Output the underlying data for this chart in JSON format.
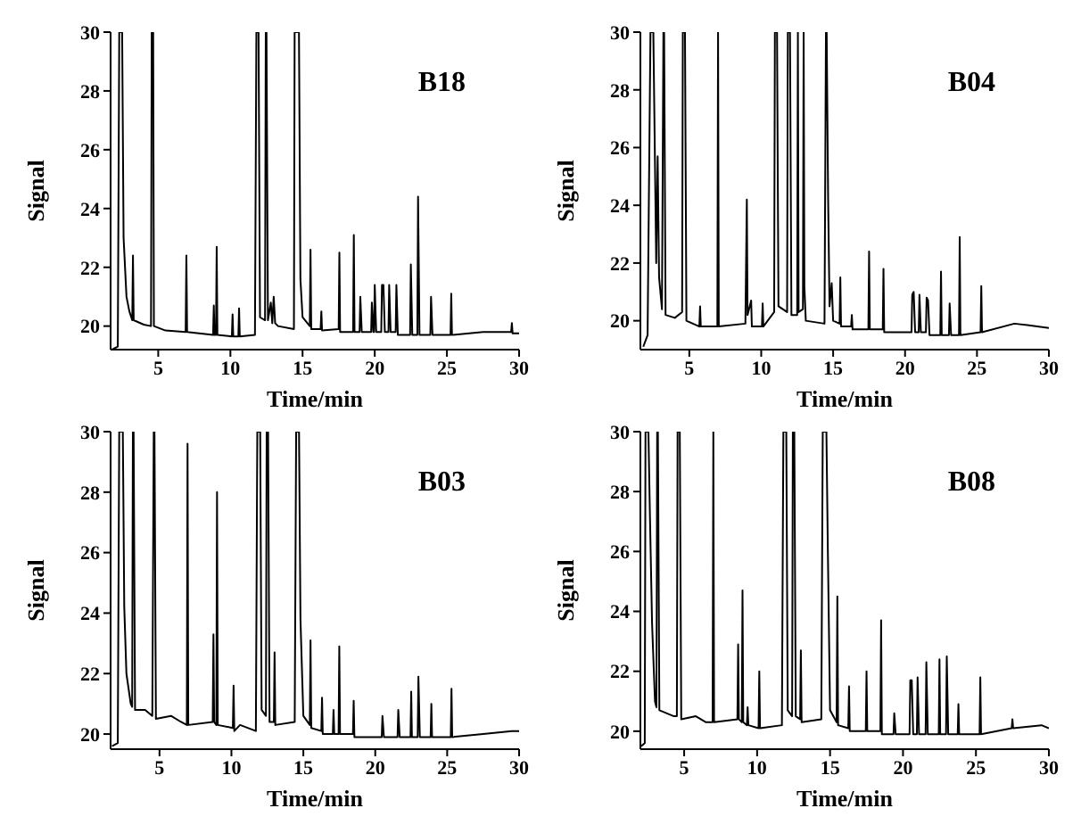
{
  "chart_data": [
    {
      "type": "line",
      "xlabel": "Time/min",
      "ylabel": "Signal",
      "annotations": [
        "B18"
      ],
      "xlim": [
        1.7,
        30
      ],
      "ylim": [
        19.2,
        30
      ],
      "xticks": [
        5,
        10,
        15,
        20,
        25,
        30
      ],
      "yticks": [
        20,
        22,
        24,
        26,
        28,
        30
      ],
      "x": [
        1.8,
        2.2,
        2.3,
        2.5,
        2.6,
        2.8,
        3.0,
        3.2,
        3.25,
        3.3,
        4.0,
        4.5,
        4.55,
        4.65,
        4.7,
        5.5,
        6.9,
        6.95,
        7.0,
        8.8,
        8.85,
        8.9,
        9.0,
        9.05,
        9.1,
        10.1,
        10.15,
        10.2,
        10.55,
        10.6,
        10.65,
        11.7,
        11.8,
        11.95,
        12.05,
        12.4,
        12.45,
        12.5,
        12.6,
        12.8,
        12.9,
        13.0,
        13.1,
        13.3,
        14.4,
        14.45,
        14.75,
        14.85,
        15.0,
        15.5,
        15.55,
        15.6,
        16.25,
        16.3,
        16.35,
        17.5,
        17.55,
        17.6,
        18.5,
        18.55,
        18.6,
        18.95,
        19.0,
        19.1,
        19.75,
        19.8,
        19.9,
        19.95,
        20.0,
        20.1,
        20.45,
        20.5,
        20.6,
        20.7,
        20.95,
        21.0,
        21.1,
        21.45,
        21.5,
        21.6,
        22.45,
        22.5,
        22.6,
        22.95,
        23.0,
        23.1,
        23.85,
        23.9,
        24.0,
        25.25,
        25.3,
        25.35,
        27.5,
        29.45,
        29.5,
        29.55,
        30
      ],
      "series": [
        {
          "color": "#000000",
          "values": [
            19.2,
            19.3,
            30,
            30,
            23,
            21,
            20.5,
            20.2,
            22.4,
            20.2,
            20.05,
            20.0,
            30,
            30,
            20.0,
            19.85,
            19.8,
            22.4,
            19.8,
            19.7,
            20.7,
            19.7,
            19.7,
            22.7,
            19.7,
            19.65,
            20.4,
            19.65,
            19.65,
            20.6,
            19.65,
            19.7,
            30,
            30,
            20.3,
            20.2,
            30,
            30,
            20.2,
            20.8,
            20.1,
            21.0,
            20.1,
            20.0,
            19.9,
            30,
            30,
            21.6,
            20.3,
            20.0,
            22.6,
            19.9,
            19.9,
            20.5,
            19.85,
            19.9,
            22.5,
            19.8,
            19.8,
            23.1,
            19.8,
            19.8,
            21.0,
            19.8,
            19.8,
            20.8,
            19.8,
            19.8,
            21.4,
            19.8,
            19.8,
            21.4,
            21.4,
            19.8,
            19.8,
            21.4,
            19.8,
            19.8,
            21.4,
            19.7,
            19.7,
            22.1,
            19.7,
            19.7,
            24.4,
            19.7,
            19.7,
            21.0,
            19.7,
            19.7,
            21.1,
            19.7,
            19.8,
            19.8,
            20.1,
            19.75,
            19.75
          ]
        }
      ]
    },
    {
      "type": "line",
      "xlabel": "Time/min",
      "ylabel": "Signal",
      "annotations": [
        "B04"
      ],
      "xlim": [
        1.6,
        30
      ],
      "ylim": [
        19.0,
        30
      ],
      "xticks": [
        5,
        10,
        15,
        20,
        25,
        30
      ],
      "yticks": [
        20,
        22,
        24,
        26,
        28,
        30
      ],
      "x": [
        1.8,
        2.1,
        2.3,
        2.5,
        2.6,
        2.7,
        2.8,
        2.9,
        3.1,
        3.2,
        3.25,
        3.35,
        4.0,
        4.5,
        4.55,
        4.7,
        4.8,
        5.7,
        5.75,
        5.8,
        6.95,
        7.0,
        7.05,
        8.9,
        9.0,
        9.05,
        9.3,
        9.35,
        10.05,
        10.1,
        10.15,
        10.9,
        10.95,
        11.1,
        11.2,
        11.8,
        11.85,
        12.0,
        12.1,
        12.5,
        12.55,
        12.6,
        12.9,
        12.95,
        13.0,
        13.1,
        14.4,
        14.5,
        14.55,
        14.65,
        14.75,
        14.9,
        15.0,
        15.45,
        15.5,
        15.55,
        16.25,
        16.3,
        16.35,
        17.45,
        17.5,
        17.55,
        18.45,
        18.5,
        18.55,
        20.45,
        20.5,
        20.6,
        20.7,
        20.95,
        21.0,
        21.1,
        21.45,
        21.5,
        21.6,
        21.7,
        22.45,
        22.5,
        22.55,
        23.05,
        23.1,
        23.2,
        23.75,
        23.8,
        23.85,
        25.25,
        25.3,
        25.35,
        27.6,
        28.5,
        30
      ],
      "series": [
        {
          "color": "#000000",
          "values": [
            19.1,
            19.5,
            30,
            30,
            26,
            22,
            25.7,
            21.5,
            20.4,
            30,
            30,
            20.2,
            20.1,
            20.3,
            30,
            30,
            20.0,
            19.8,
            20.5,
            19.8,
            19.8,
            30,
            19.8,
            19.9,
            24.2,
            20.2,
            20.7,
            19.8,
            19.8,
            20.6,
            19.8,
            20.3,
            30,
            30,
            20.5,
            20.3,
            30,
            30,
            20.2,
            20.2,
            30,
            20.3,
            20.4,
            30,
            21.2,
            20.0,
            19.9,
            30,
            30,
            24.3,
            20.5,
            21.3,
            20.0,
            19.9,
            21.5,
            19.8,
            19.8,
            20.2,
            19.7,
            19.7,
            22.4,
            19.7,
            19.7,
            21.8,
            19.6,
            19.6,
            20.9,
            21.0,
            19.6,
            19.6,
            20.9,
            19.6,
            19.6,
            20.8,
            20.7,
            19.5,
            19.5,
            21.7,
            19.5,
            19.5,
            20.6,
            19.5,
            19.5,
            22.9,
            19.5,
            19.6,
            21.2,
            19.6,
            19.9,
            19.85,
            19.75
          ]
        }
      ]
    },
    {
      "type": "line",
      "xlabel": "Time/min",
      "ylabel": "Signal",
      "annotations": [
        "B03"
      ],
      "xlim": [
        1.6,
        30
      ],
      "ylim": [
        19.5,
        30
      ],
      "xticks": [
        5,
        10,
        15,
        20,
        25,
        30
      ],
      "yticks": [
        20,
        22,
        24,
        26,
        28,
        30
      ],
      "x": [
        1.7,
        2.1,
        2.2,
        2.45,
        2.55,
        2.7,
        3.0,
        3.1,
        3.15,
        3.2,
        3.3,
        4.0,
        4.5,
        4.6,
        4.65,
        4.75,
        5.8,
        6.5,
        6.9,
        6.95,
        7.0,
        8.7,
        8.75,
        8.8,
        8.95,
        9.0,
        9.05,
        10.1,
        10.15,
        10.2,
        10.6,
        11.7,
        11.8,
        12.0,
        12.1,
        12.4,
        12.45,
        12.55,
        12.65,
        12.95,
        13.0,
        13.05,
        14.4,
        14.5,
        14.7,
        14.8,
        15.0,
        15.45,
        15.5,
        15.55,
        16.25,
        16.3,
        16.35,
        17.05,
        17.1,
        17.15,
        17.45,
        17.5,
        17.55,
        18.45,
        18.5,
        18.55,
        20.45,
        20.5,
        20.6,
        21.55,
        21.6,
        21.7,
        22.45,
        22.5,
        22.55,
        22.95,
        23.0,
        23.1,
        23.85,
        23.9,
        23.95,
        25.25,
        25.3,
        25.35,
        27.5,
        29.5,
        30
      ],
      "series": [
        {
          "color": "#000000",
          "values": [
            19.6,
            19.7,
            30,
            30,
            24.2,
            22,
            21,
            20.9,
            30,
            30,
            20.8,
            20.8,
            20.6,
            30,
            30,
            20.5,
            20.6,
            20.4,
            20.3,
            29.6,
            20.3,
            20.4,
            23.3,
            20.4,
            20.3,
            28.0,
            20.3,
            20.2,
            21.6,
            20.1,
            20.3,
            20.1,
            30,
            30,
            20.8,
            20.6,
            30,
            30,
            20.4,
            20.4,
            22.7,
            20.3,
            20.4,
            30,
            30,
            23.8,
            20.6,
            20.3,
            23.1,
            20.2,
            20.1,
            21.2,
            20.0,
            20.0,
            20.8,
            20.0,
            20.0,
            22.9,
            20.0,
            20.0,
            21.1,
            19.9,
            19.9,
            20.6,
            19.9,
            19.9,
            20.8,
            19.9,
            19.9,
            21.4,
            19.9,
            19.9,
            21.9,
            19.9,
            19.9,
            21.0,
            19.9,
            19.9,
            21.5,
            19.9,
            20.0,
            20.1,
            20.1
          ]
        }
      ]
    },
    {
      "type": "line",
      "xlabel": "Time/min",
      "ylabel": "Signal",
      "annotations": [
        "B08"
      ],
      "xlim": [
        2,
        30
      ],
      "ylim": [
        19.4,
        30
      ],
      "xticks": [
        5,
        10,
        15,
        20,
        25,
        30
      ],
      "yticks": [
        20,
        22,
        24,
        26,
        28,
        30
      ],
      "x": [
        2.05,
        2.3,
        2.35,
        2.55,
        2.65,
        2.8,
        3.0,
        3.1,
        3.15,
        3.2,
        3.3,
        4.3,
        4.5,
        4.55,
        4.7,
        4.8,
        5.8,
        6.5,
        6.95,
        7.0,
        7.05,
        8.65,
        8.7,
        8.75,
        8.95,
        9.0,
        9.05,
        9.3,
        9.35,
        9.4,
        10.1,
        10.15,
        10.2,
        11.7,
        11.8,
        12.0,
        12.1,
        12.4,
        12.45,
        12.55,
        12.65,
        12.95,
        13.0,
        13.05,
        14.4,
        14.5,
        14.75,
        14.85,
        15.0,
        15.45,
        15.5,
        15.55,
        16.25,
        16.3,
        16.35,
        17.45,
        17.5,
        17.55,
        18.45,
        18.5,
        18.55,
        19.35,
        19.4,
        19.5,
        20.45,
        20.5,
        20.6,
        20.7,
        20.95,
        21.0,
        21.1,
        21.55,
        21.6,
        21.7,
        22.45,
        22.5,
        22.55,
        22.95,
        23.0,
        23.1,
        23.75,
        23.8,
        23.85,
        25.25,
        25.3,
        25.35,
        27.45,
        27.5,
        27.55,
        29.5,
        30
      ],
      "series": [
        {
          "color": "#000000",
          "values": [
            19.5,
            19.6,
            30,
            30,
            27.3,
            23.6,
            21.0,
            20.8,
            30,
            30,
            20.7,
            20.5,
            20.5,
            30,
            30,
            20.4,
            20.5,
            20.3,
            20.3,
            30,
            20.3,
            20.4,
            22.9,
            20.4,
            20.3,
            24.7,
            20.3,
            20.2,
            20.8,
            20.2,
            20.1,
            22.0,
            20.1,
            20.2,
            30,
            30,
            20.7,
            20.5,
            30,
            30,
            20.5,
            20.4,
            22.7,
            20.3,
            20.4,
            30,
            30,
            26.0,
            20.7,
            20.3,
            24.5,
            20.2,
            20.1,
            21.5,
            20.0,
            20.0,
            22.0,
            20.0,
            20.0,
            23.7,
            19.9,
            19.9,
            20.6,
            19.9,
            19.9,
            21.7,
            21.7,
            19.9,
            19.9,
            21.8,
            19.9,
            19.9,
            22.3,
            19.9,
            19.9,
            22.4,
            19.9,
            19.9,
            22.5,
            19.9,
            19.9,
            20.9,
            19.9,
            19.9,
            21.8,
            19.9,
            20.1,
            20.4,
            20.1,
            20.2,
            20.1
          ]
        }
      ]
    }
  ]
}
